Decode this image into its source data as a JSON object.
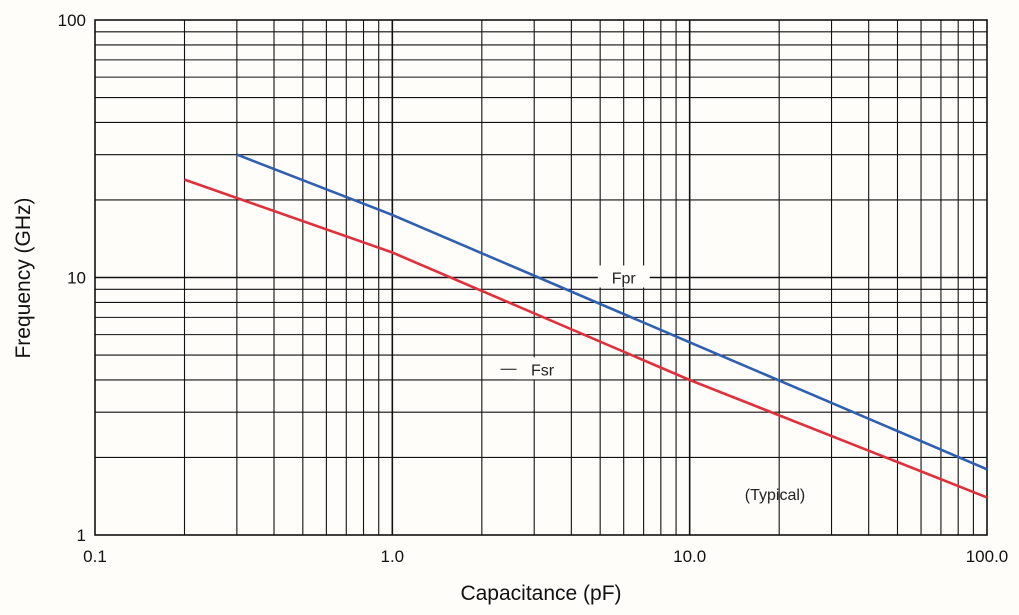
{
  "chart_data": {
    "type": "line",
    "title": "",
    "xlabel": "Capacitance (pF)",
    "ylabel": "Frequency (GHz)",
    "xscale": "log",
    "yscale": "log",
    "xlim": [
      0.1,
      100
    ],
    "ylim": [
      1,
      100
    ],
    "grid": true,
    "x_tick_labels": [
      "0.1",
      "1.0",
      "10.0",
      "100.0"
    ],
    "y_tick_labels": [
      "1",
      "10",
      "100"
    ],
    "annotations": [
      "(Typical)"
    ],
    "series": [
      {
        "name": "Fpr",
        "color": "#2e5fb0",
        "x": [
          0.3,
          1.0,
          10.0,
          100.0
        ],
        "y": [
          30,
          17.5,
          5.6,
          1.8
        ]
      },
      {
        "name": "Fsr",
        "color": "#e0303c",
        "x": [
          0.2,
          1.0,
          10.0,
          100.0
        ],
        "y": [
          24,
          12.5,
          4.0,
          1.4
        ]
      }
    ]
  }
}
